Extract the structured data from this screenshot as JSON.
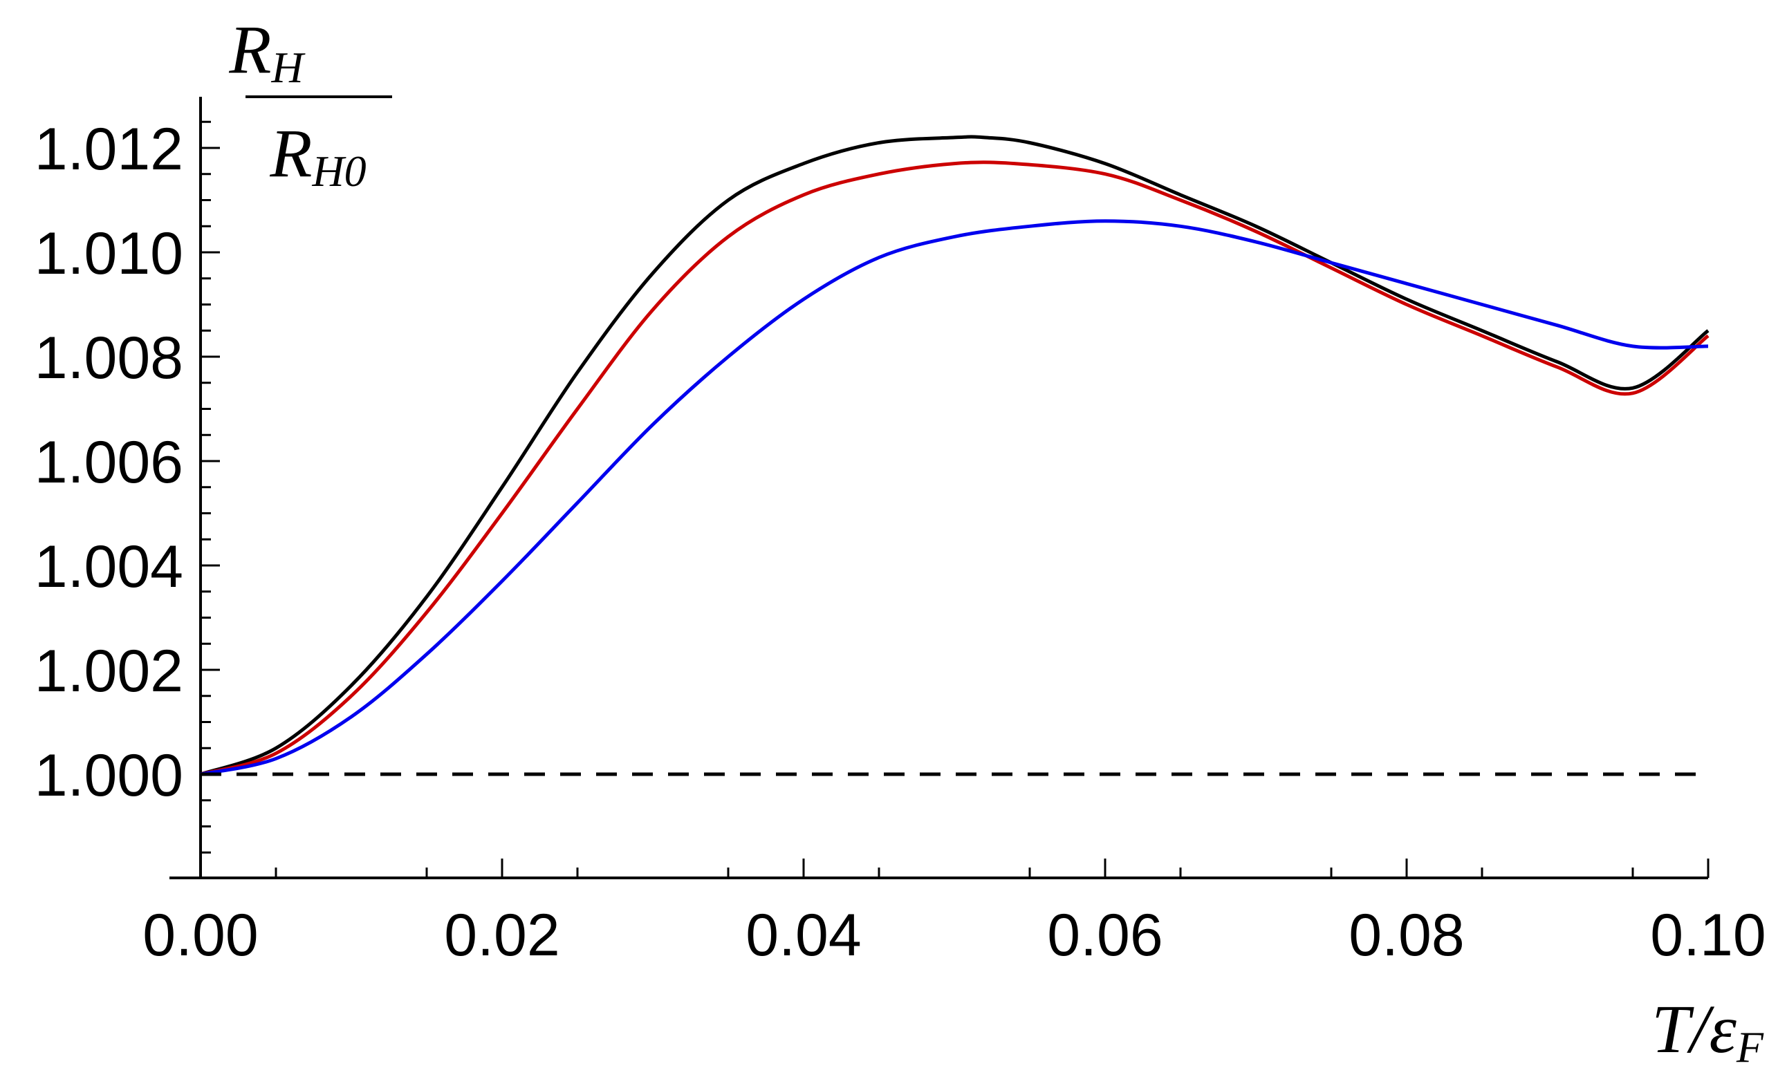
{
  "chart_data": {
    "type": "line",
    "title": "",
    "xlabel": {
      "main": "T/ε",
      "sub": "F"
    },
    "ylabel": {
      "num_main": "R",
      "num_sub": "H",
      "den_main": "R",
      "den_sub": "H0"
    },
    "xlim": [
      0.0,
      0.1
    ],
    "ylim": [
      0.998,
      1.013
    ],
    "x_ticks": [
      0.0,
      0.02,
      0.04,
      0.06,
      0.08,
      0.1
    ],
    "x_tick_labels": [
      "0.00",
      "0.02",
      "0.04",
      "0.06",
      "0.08",
      "0.10"
    ],
    "y_ticks": [
      1.0,
      1.002,
      1.004,
      1.006,
      1.008,
      1.01,
      1.012
    ],
    "y_tick_labels": [
      "1.000",
      "1.002",
      "1.004",
      "1.006",
      "1.008",
      "1.010",
      "1.012"
    ],
    "grid": false,
    "legend": "none",
    "series": [
      {
        "color": "#000000",
        "style": "solid",
        "x": [
          0,
          0.005,
          0.01,
          0.015,
          0.02,
          0.025,
          0.03,
          0.035,
          0.04,
          0.045,
          0.05,
          0.052,
          0.055,
          0.06,
          0.065,
          0.07,
          0.075,
          0.08,
          0.085,
          0.09,
          0.095,
          0.1
        ],
        "y": [
          1.0,
          1.0005,
          1.0017,
          1.0034,
          1.0055,
          1.0077,
          1.0096,
          1.011,
          1.0117,
          1.0121,
          1.0122,
          1.0122,
          1.0121,
          1.0117,
          1.0111,
          1.0105,
          1.0098,
          1.0091,
          1.0085,
          1.0079,
          1.0074,
          1.0085
        ]
      },
      {
        "color": "#cc0000",
        "style": "solid",
        "x": [
          0,
          0.005,
          0.01,
          0.015,
          0.02,
          0.025,
          0.03,
          0.035,
          0.04,
          0.045,
          0.05,
          0.054,
          0.06,
          0.065,
          0.07,
          0.075,
          0.08,
          0.085,
          0.09,
          0.095,
          0.1
        ],
        "y": [
          1.0,
          1.0004,
          1.0015,
          1.0031,
          1.005,
          1.007,
          1.0089,
          1.0103,
          1.0111,
          1.0115,
          1.0117,
          1.0117,
          1.0115,
          1.011,
          1.0104,
          1.0097,
          1.009,
          1.0084,
          1.0078,
          1.0073,
          1.0084
        ]
      },
      {
        "color": "#0000ee",
        "style": "solid",
        "x": [
          0,
          0.005,
          0.01,
          0.015,
          0.02,
          0.025,
          0.03,
          0.035,
          0.04,
          0.045,
          0.05,
          0.055,
          0.06,
          0.065,
          0.07,
          0.075,
          0.08,
          0.085,
          0.09,
          0.095,
          0.1
        ],
        "y": [
          1.0,
          1.0003,
          1.0011,
          1.0023,
          1.0037,
          1.0052,
          1.0067,
          1.008,
          1.0091,
          1.0099,
          1.0103,
          1.0105,
          1.0106,
          1.0105,
          1.0102,
          1.0098,
          1.0094,
          1.009,
          1.0086,
          1.0082,
          1.0082
        ]
      },
      {
        "color": "#000000",
        "style": "dashed",
        "x": [
          0,
          0.1
        ],
        "y": [
          1.0,
          1.0
        ]
      }
    ]
  }
}
